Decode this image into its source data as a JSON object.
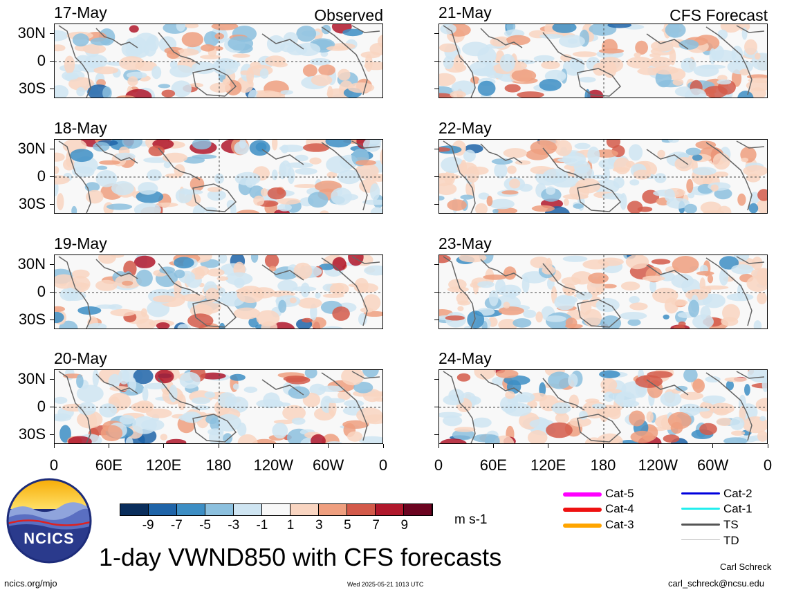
{
  "chart_data": {
    "type": "heatmap",
    "variable": "VWND850",
    "units": "m s-1",
    "title": "1-day VWND850 with CFS forecasts",
    "column_headers": [
      "Observed",
      "CFS Forecast"
    ],
    "panels": [
      {
        "date": "17-May",
        "source": "Observed"
      },
      {
        "date": "18-May",
        "source": "Observed"
      },
      {
        "date": "19-May",
        "source": "Observed"
      },
      {
        "date": "20-May",
        "source": "Observed"
      },
      {
        "date": "21-May",
        "source": "CFS Forecast"
      },
      {
        "date": "22-May",
        "source": "CFS Forecast"
      },
      {
        "date": "23-May",
        "source": "CFS Forecast"
      },
      {
        "date": "24-May",
        "source": "CFS Forecast"
      }
    ],
    "y_ticks": [
      "30N",
      "0",
      "30S"
    ],
    "x_ticks": [
      "0",
      "60E",
      "120E",
      "180",
      "120W",
      "60W",
      "0"
    ],
    "colorbar": {
      "levels": [
        "-9",
        "-7",
        "-5",
        "-3",
        "-1",
        "1",
        "3",
        "5",
        "7",
        "9"
      ],
      "colors": [
        "#0a2e5c",
        "#1f64a8",
        "#3d8ec4",
        "#8cc0de",
        "#cfe5f2",
        "#f8f8f8",
        "#f9d5c1",
        "#ef9f7f",
        "#d35a4a",
        "#b0182c",
        "#6b0420"
      ]
    },
    "storm_legend": [
      {
        "label": "Cat-5",
        "color": "#ff00ff"
      },
      {
        "label": "Cat-4",
        "color": "#ee1111"
      },
      {
        "label": "Cat-3",
        "color": "#ffa500"
      },
      {
        "label": "Cat-2",
        "color": "#0000dd"
      },
      {
        "label": "Cat-1",
        "color": "#22eeee"
      },
      {
        "label": "TS",
        "color": "#555555"
      },
      {
        "label": "TD",
        "color": "#bbbbbb"
      }
    ]
  },
  "logo": {
    "text": "NCICS"
  },
  "footer": {
    "url": "ncics.org/mjo",
    "timestamp": "Wed 2025-05-21 1013 UTC",
    "author": "Carl Schreck",
    "email": "carl_schreck@ncsu.edu"
  }
}
